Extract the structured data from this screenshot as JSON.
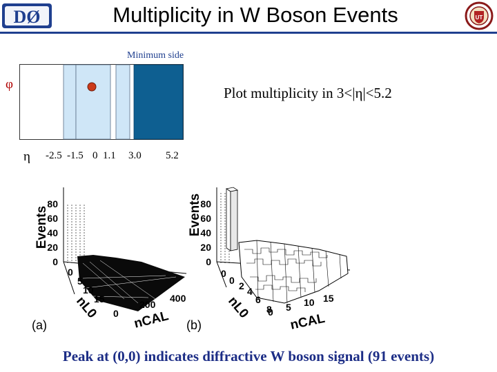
{
  "slide": {
    "title": "Multiplicity in W Boson Events",
    "caption": "Peak at (0,0) indicates diffractive W boson signal (91 events)"
  },
  "logos": {
    "left_text": "DØ",
    "right_text": "UT"
  },
  "diagram": {
    "top_label": "Minimum side",
    "phi_label": "φ",
    "eta_label": "η",
    "eta_ticks": [
      "-2.5",
      "-1.5",
      "0",
      "1.1",
      "3.0",
      "5.2"
    ],
    "note": "Plot multiplicity in 3<|η|<5.2"
  },
  "plots": [
    {
      "panel": "(a)",
      "z_label": "Events",
      "z_ticks": [
        "0",
        "20",
        "40",
        "60",
        "80"
      ],
      "y_label": "nL0",
      "y_ticks": [
        "0",
        "5",
        "10",
        "15"
      ],
      "x_label": "nCAL",
      "x_ticks": [
        "0",
        "200",
        "400"
      ]
    },
    {
      "panel": "(b)",
      "z_label": "Events",
      "z_ticks": [
        "0",
        "20",
        "40",
        "60",
        "80"
      ],
      "y_label": "nL0",
      "y_ticks": [
        "0",
        "2",
        "4",
        "6",
        "8"
      ],
      "x_label": "nCAL",
      "x_ticks": [
        "0",
        "5",
        "10",
        "15"
      ]
    }
  ],
  "chart_data": [
    {
      "type": "surface",
      "panel": "(a)",
      "zlabel": "Events",
      "ylabel": "nL0",
      "xlabel": "nCAL",
      "zlim": [
        0,
        80
      ],
      "ylim": [
        0,
        15
      ],
      "xlim": [
        0,
        400
      ]
    },
    {
      "type": "lego",
      "panel": "(b)",
      "zlabel": "Events",
      "ylabel": "nL0",
      "xlabel": "nCAL",
      "zlim": [
        0,
        80
      ],
      "ylim": [
        0,
        8
      ],
      "xlim": [
        0,
        15
      ],
      "peak": {
        "x": 0,
        "y": 0,
        "value": 91
      }
    }
  ]
}
